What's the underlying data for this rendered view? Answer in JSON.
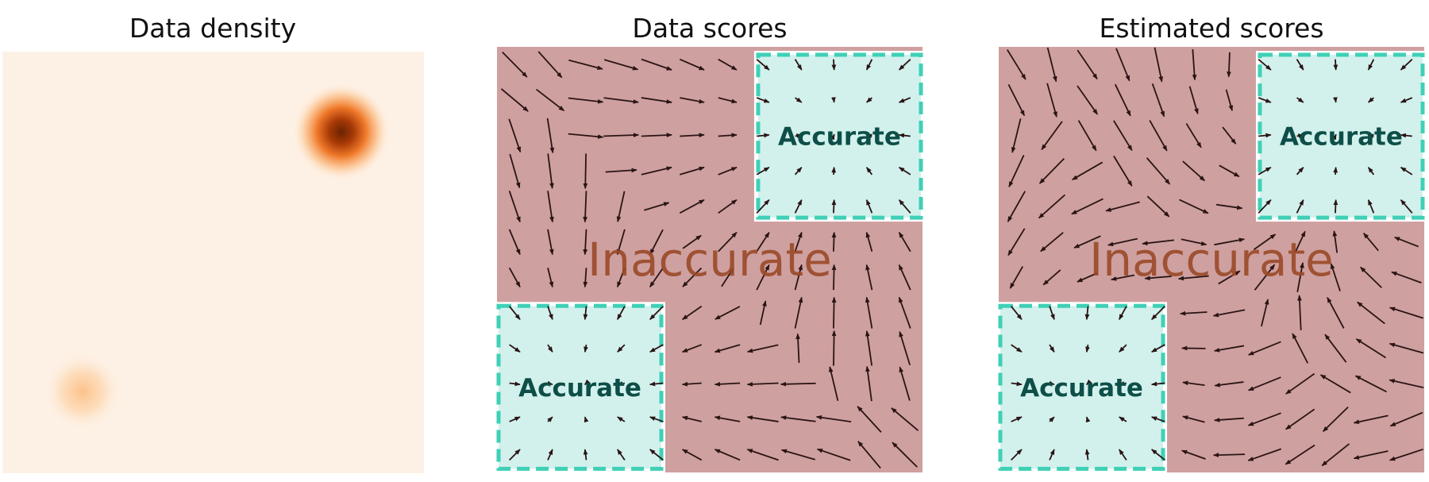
{
  "panels": [
    {
      "title": "Data density"
    },
    {
      "title": "Data scores",
      "inaccurate_label": "Inaccurate",
      "accurate_label": "Accurate"
    },
    {
      "title": "Estimated scores",
      "inaccurate_label": "Inaccurate",
      "accurate_label": "Accurate"
    }
  ],
  "density": {
    "modes": [
      {
        "position": "top-right",
        "weight": 1.0
      },
      {
        "position": "bottom-left",
        "weight": 0.25
      }
    ],
    "colormap": [
      "#fdf1e5",
      "#fdd0a2",
      "#f16913",
      "#7f2704"
    ]
  },
  "colors": {
    "inaccurate_fill": "#cfa0a0",
    "accurate_fill": "#d2f1ec",
    "accurate_border": "#3fd0b6",
    "inaccurate_text": "#9a4a28",
    "accurate_text": "#0e4e48",
    "arrow": "#2a1414"
  }
}
